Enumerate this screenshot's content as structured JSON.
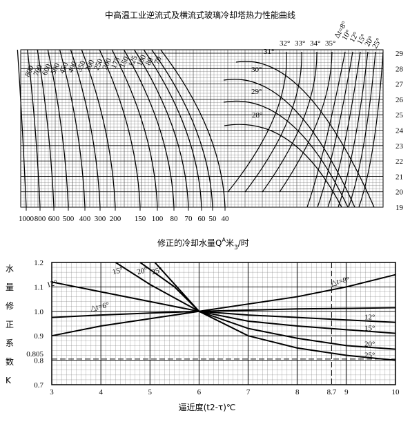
{
  "chart_data": [
    {
      "type": "nomograph",
      "title": "中高温工业逆流式及横流式玻璃冷却塔热力性能曲线",
      "ylim": [
        19,
        29
      ],
      "yticks": [
        19,
        20,
        21,
        22,
        23,
        24,
        25,
        26,
        27,
        28,
        29
      ],
      "x_labels": [
        1000,
        800,
        600,
        500,
        400,
        300,
        200,
        150,
        100,
        80,
        70,
        60,
        50,
        40
      ],
      "flow_labels": [
        800,
        700,
        600,
        500,
        450,
        400,
        350,
        300,
        250,
        200,
        175,
        150,
        125,
        100,
        80,
        70
      ],
      "temp_labels": [
        "28°",
        "29°",
        "30°",
        "31°"
      ],
      "top_labels": [
        "32°",
        "33°",
        "34°",
        "35°",
        "Δt=8°",
        "10°",
        "12°",
        "15°",
        "20°",
        "25°"
      ]
    },
    {
      "type": "line",
      "caption": {
        "main": "修正的冷却水量Q",
        "sup": "A",
        "unit": "米",
        "sub": "3",
        "tail": "/时"
      },
      "y_label": [
        "水",
        "量",
        "修",
        "正",
        "系",
        "数",
        "K"
      ],
      "x_label": "逼近度(t2-τ)℃",
      "xlim": [
        3,
        10
      ],
      "xticks": [
        3,
        4,
        5,
        6,
        7,
        8,
        8.7,
        9,
        10
      ],
      "ylim": [
        0.7,
        1.2
      ],
      "yticks": [
        0.7,
        0.8,
        0.805,
        0.9,
        {
          "value": 1,
          "label": "1.0"
        },
        1.1,
        1.2
      ],
      "grid": true,
      "series": [
        {
          "name": "△t=8°",
          "color": "#000",
          "x": [
            3,
            4,
            5,
            6,
            7,
            8,
            9,
            10
          ],
          "values": [
            0.9,
            0.94,
            0.97,
            1.0,
            1.03,
            1.06,
            1.1,
            1.15
          ]
        },
        {
          "name": "△t=6°",
          "color": "#000",
          "x": [
            3,
            4,
            5,
            6,
            7,
            8,
            9,
            10
          ],
          "values": [
            0.975,
            0.985,
            0.993,
            1.0,
            1.005,
            1.01,
            1.012,
            1.015
          ]
        },
        {
          "name": "12°",
          "color": "#000",
          "x": [
            3,
            4,
            5,
            6,
            7,
            8,
            9,
            10
          ],
          "values": [
            1.12,
            1.08,
            1.04,
            1.0,
            0.985,
            0.975,
            0.965,
            0.955
          ]
        },
        {
          "name": "15°",
          "color": "#000",
          "x": [
            4.3,
            5,
            6,
            7,
            8,
            9,
            10
          ],
          "values": [
            1.2,
            1.11,
            1.0,
            0.96,
            0.94,
            0.925,
            0.91
          ]
        },
        {
          "name": "20°",
          "color": "#000",
          "x": [
            4.8,
            5.5,
            6,
            7,
            8,
            9,
            10
          ],
          "values": [
            1.2,
            1.1,
            1.0,
            0.93,
            0.89,
            0.86,
            0.845
          ]
        },
        {
          "name": "25°",
          "color": "#000",
          "x": [
            5.1,
            6,
            7,
            8,
            9,
            10
          ],
          "values": [
            1.2,
            1.0,
            0.9,
            0.85,
            0.82,
            0.8
          ]
        }
      ]
    }
  ]
}
